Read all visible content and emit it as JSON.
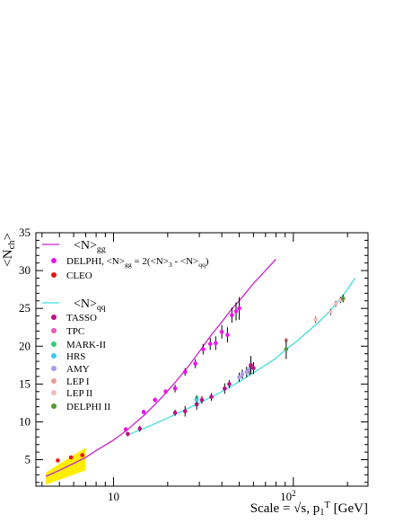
{
  "chart_data": {
    "type": "scatter",
    "x_scale": "log",
    "xlim": [
      3.7,
      260
    ],
    "ylim": [
      1.5,
      35
    ],
    "xlabel": "Scale = √s, p",
    "xlabel_sub": "1",
    "xlabel_sup": "T",
    "xlabel_suffix": " [GeV]",
    "ylabel": "<N",
    "ylabel_sub": "ch",
    "ylabel_suffix": ">",
    "x_tick_labels": [
      {
        "x": 10,
        "label": "10",
        "sup": ""
      },
      {
        "x": 100,
        "label": "10",
        "sup": "2"
      }
    ],
    "y_ticks": [
      5,
      10,
      15,
      20,
      25,
      30,
      35
    ],
    "legend": {
      "gg_head": "<N>",
      "gg_head_sub": "gg",
      "qq_head": "<N>",
      "qq_head_sub": "qq",
      "entries": [
        {
          "key": "delphi",
          "label": "DELPHI, <N>",
          "sub": "gg",
          "suffix": " = 2(<N>",
          "sub2": "3",
          "suffix2": " - <N>",
          "sub3": "qq",
          "suffix3": ")",
          "color": "#ee11ee"
        },
        {
          "key": "cleo",
          "label": "CLEO",
          "color": "#ee1111"
        },
        {
          "key": "tasso",
          "label": "TASSO",
          "color": "#bb1188"
        },
        {
          "key": "tpc",
          "label": "TPC",
          "color": "#ee55bb"
        },
        {
          "key": "markii",
          "label": "MARK-II",
          "color": "#33cc77"
        },
        {
          "key": "hrs",
          "label": "HRS",
          "color": "#33ccee"
        },
        {
          "key": "amy",
          "label": "AMY",
          "color": "#aa99ee"
        },
        {
          "key": "lepi",
          "label": "LEP I",
          "color": "#ee9999"
        },
        {
          "key": "lepii",
          "label": "LEP II",
          "color": "#f5bbbb"
        },
        {
          "key": "delphiii",
          "label": "DELPHI II",
          "color": "#559933"
        }
      ]
    },
    "curves": [
      {
        "name": "gg",
        "color": "#cc22cc",
        "x": [
          4.2,
          5,
          6,
          7,
          8,
          10,
          12,
          15,
          18,
          22,
          26,
          30,
          35,
          40,
          45,
          50,
          55,
          60,
          70,
          80
        ],
        "y": [
          2.8,
          3.6,
          4.5,
          5.3,
          6.2,
          7.6,
          9.0,
          11.0,
          12.9,
          15.2,
          17.3,
          19.3,
          21.5,
          23.2,
          24.8,
          26.0,
          27.2,
          28.3,
          30.0,
          31.5
        ]
      },
      {
        "name": "qq",
        "color": "#44dddd",
        "x": [
          12,
          15,
          20,
          25,
          30,
          35,
          40,
          50,
          60,
          70,
          80,
          91,
          100,
          120,
          140,
          160,
          180,
          200,
          220
        ],
        "y": [
          8.3,
          9.2,
          10.5,
          11.6,
          12.5,
          13.3,
          14.0,
          15.3,
          16.5,
          17.5,
          18.4,
          19.6,
          20.3,
          21.9,
          23.3,
          24.7,
          26.1,
          27.5,
          29.0
        ]
      }
    ],
    "band": {
      "color": "#ffee00",
      "x": [
        4.2,
        7.0
      ],
      "lower": [
        1.7,
        3.6
      ],
      "upper": [
        3.3,
        6.6
      ]
    },
    "points": [
      {
        "series": "cleo",
        "x": 4.9,
        "y": 4.9,
        "err": 0
      },
      {
        "series": "cleo",
        "x": 5.8,
        "y": 5.3,
        "err": 0
      },
      {
        "series": "cleo",
        "x": 6.7,
        "y": 5.6,
        "err": 0
      },
      {
        "series": "delphi",
        "x": 11.7,
        "y": 9.0,
        "err": 0.3
      },
      {
        "series": "delphi",
        "x": 14.7,
        "y": 11.3,
        "err": 0.3
      },
      {
        "series": "delphi",
        "x": 17.0,
        "y": 12.9,
        "err": 0.3
      },
      {
        "series": "delphi",
        "x": 19.5,
        "y": 14.0,
        "err": 0.3
      },
      {
        "series": "delphi",
        "x": 22.0,
        "y": 14.4,
        "err": 0.5
      },
      {
        "series": "delphi",
        "x": 25.0,
        "y": 16.6,
        "err": 0.5
      },
      {
        "series": "delphi",
        "x": 28.5,
        "y": 17.7,
        "err": 0.6
      },
      {
        "series": "delphi",
        "x": 31.5,
        "y": 19.6,
        "err": 0.7
      },
      {
        "series": "delphi",
        "x": 34.5,
        "y": 20.3,
        "err": 0.8
      },
      {
        "series": "delphi",
        "x": 37.0,
        "y": 20.4,
        "err": 0.9
      },
      {
        "series": "delphi",
        "x": 40.0,
        "y": 21.9,
        "err": 0.9
      },
      {
        "series": "delphi",
        "x": 43.0,
        "y": 21.5,
        "err": 1.0
      },
      {
        "series": "delphi",
        "x": 45.5,
        "y": 24.1,
        "err": 1.0
      },
      {
        "series": "delphi",
        "x": 48.0,
        "y": 24.6,
        "err": 1.2
      },
      {
        "series": "delphi",
        "x": 50.0,
        "y": 25.0,
        "err": 1.5
      },
      {
        "series": "tasso",
        "x": 12.0,
        "y": 8.4,
        "err": 0.3
      },
      {
        "series": "tasso",
        "x": 14.0,
        "y": 9.1,
        "err": 0.4
      },
      {
        "series": "tasso",
        "x": 22.0,
        "y": 11.2,
        "err": 0.4
      },
      {
        "series": "tasso",
        "x": 25.0,
        "y": 11.4,
        "err": 0.7
      },
      {
        "series": "tasso",
        "x": 29.0,
        "y": 12.3,
        "err": 0.7
      },
      {
        "series": "tasso",
        "x": 31.0,
        "y": 12.9,
        "err": 0.5
      },
      {
        "series": "tasso",
        "x": 35.0,
        "y": 13.3,
        "err": 0.5
      },
      {
        "series": "tasso",
        "x": 41.5,
        "y": 14.4,
        "err": 0.7
      },
      {
        "series": "tasso",
        "x": 44.0,
        "y": 15.0,
        "err": 0.5
      },
      {
        "series": "tpc",
        "x": 29.0,
        "y": 12.9,
        "err": 0.5
      },
      {
        "series": "markii",
        "x": 29.0,
        "y": 13.1,
        "err": 0.4
      },
      {
        "series": "hrs",
        "x": 29.0,
        "y": 12.9,
        "err": 0.4
      },
      {
        "series": "amy",
        "x": 50.0,
        "y": 15.9,
        "err": 0.6
      },
      {
        "series": "amy",
        "x": 52.0,
        "y": 16.3,
        "err": 0.6
      },
      {
        "series": "amy",
        "x": 55.0,
        "y": 16.6,
        "err": 0.7
      },
      {
        "series": "amy",
        "x": 57.0,
        "y": 16.9,
        "err": 0.7
      },
      {
        "series": "tasso",
        "x": 58.0,
        "y": 17.5,
        "err": 1.2
      },
      {
        "series": "tasso",
        "x": 60.0,
        "y": 17.1,
        "err": 0.8
      },
      {
        "series": "lepi",
        "x": 91.2,
        "y": 20.8,
        "err": 0.3
      },
      {
        "series": "delphiii",
        "x": 91.2,
        "y": 19.6,
        "err": 1.3
      },
      {
        "series": "lepii",
        "x": 133.0,
        "y": 23.5,
        "err": 0.4
      },
      {
        "series": "lepii",
        "x": 161.0,
        "y": 24.5,
        "err": 0.4
      },
      {
        "series": "lepii",
        "x": 172.0,
        "y": 25.6,
        "err": 0.4
      },
      {
        "series": "lepii",
        "x": 183.0,
        "y": 26.1,
        "err": 0.4
      },
      {
        "series": "delphiii",
        "x": 189.0,
        "y": 26.3,
        "err": 0.5
      }
    ]
  }
}
